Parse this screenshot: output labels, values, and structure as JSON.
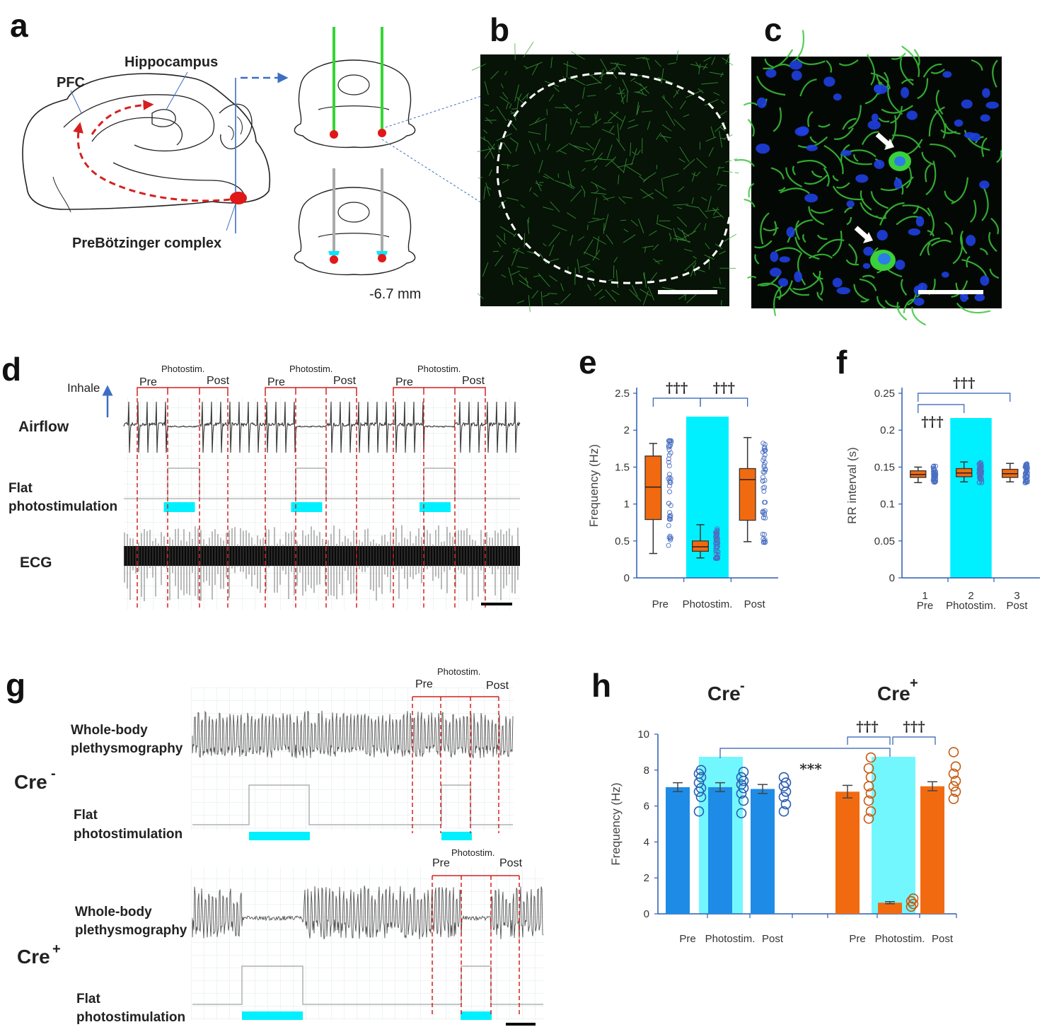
{
  "panel_labels": {
    "a": "a",
    "b": "b",
    "c": "c",
    "d": "d",
    "e": "e",
    "f": "f",
    "g": "g",
    "h": "h"
  },
  "panel_a": {
    "pfc": "PFC",
    "hippocampus": "Hippocampus",
    "prebotzinger": "PreBötzinger complex",
    "depth": "-6.7 mm"
  },
  "panel_d": {
    "inhale": "Inhale",
    "airflow": "Airflow",
    "flat1": "Flat",
    "flat2": "photostimulation",
    "ecg": "ECG",
    "epochs": [
      {
        "pre": "Pre",
        "photo": "Photostim.",
        "post": "Post"
      },
      {
        "pre": "Pre",
        "photo": "Photostim.",
        "post": "Post"
      },
      {
        "pre": "Pre",
        "photo": "Photostim.",
        "post": "Post"
      }
    ]
  },
  "panel_g": {
    "creneg": "Cre",
    "creneg_sup": "-",
    "crepos": "Cre",
    "crepos_sup": "+",
    "wbp1": "Whole-body",
    "wbp2": "plethysmography",
    "flat1": "Flat",
    "flat2": "photostimulation",
    "pre": "Pre",
    "photo": "Photostim.",
    "post": "Post"
  },
  "colors": {
    "orange": "#f26a10",
    "blue": "#1e8ce6",
    "cyan": "#00f0ff",
    "red_dash": "#d42020",
    "axis_blue": "#2b5db0"
  },
  "chart_data": [
    {
      "id": "e",
      "type": "box",
      "ylabel": "Frequency (Hz)",
      "ylim": [
        0,
        2.5
      ],
      "yticks": [
        "0",
        "0.5",
        "1",
        "1.5",
        "2",
        "2.5"
      ],
      "categories": [
        "Pre",
        "Photostim.",
        "Post"
      ],
      "highlight_category": "Photostim.",
      "boxes": [
        {
          "min": 0.33,
          "q1": 0.79,
          "median": 1.23,
          "q3": 1.65,
          "max": 1.82
        },
        {
          "min": 0.27,
          "q1": 0.36,
          "median": 0.42,
          "q3": 0.5,
          "max": 0.72
        },
        {
          "min": 0.49,
          "q1": 0.78,
          "median": 1.33,
          "q3": 1.48,
          "max": 1.9
        }
      ],
      "significance": [
        {
          "from": "Pre",
          "to": "Photostim.",
          "label": "†††"
        },
        {
          "from": "Photostim.",
          "to": "Post",
          "label": "†††"
        }
      ]
    },
    {
      "id": "f",
      "type": "box",
      "ylabel": "RR interval (s)",
      "ylim": [
        0,
        0.25
      ],
      "yticks": [
        "0",
        "0.05",
        "0.1",
        "0.15",
        "0.2",
        "0.25"
      ],
      "categories": [
        "Pre",
        "Photostim.",
        "Post"
      ],
      "category_numbers": [
        "1",
        "2",
        "3"
      ],
      "highlight_category": "Photostim.",
      "boxes": [
        {
          "min": 0.129,
          "q1": 0.136,
          "median": 0.14,
          "q3": 0.145,
          "max": 0.15
        },
        {
          "min": 0.13,
          "q1": 0.137,
          "median": 0.142,
          "q3": 0.148,
          "max": 0.157
        },
        {
          "min": 0.13,
          "q1": 0.136,
          "median": 0.141,
          "q3": 0.147,
          "max": 0.155
        }
      ],
      "significance": [
        {
          "from": "Pre",
          "to": "Photostim.",
          "label": "†††"
        },
        {
          "from": "Pre",
          "to": "Post",
          "label": "†††"
        }
      ]
    },
    {
      "id": "h",
      "type": "bar",
      "ylabel": "Frequency (Hz)",
      "ylim": [
        0,
        10
      ],
      "yticks": [
        "0",
        "2",
        "4",
        "6",
        "8",
        "10"
      ],
      "groups": [
        {
          "name": "Cre",
          "sup": "-",
          "categories": [
            "Pre",
            "Photostim.",
            "Post"
          ],
          "values": [
            7.05,
            7.05,
            6.95
          ],
          "errors": [
            0.25,
            0.25,
            0.25
          ],
          "points": [
            [
              5.7,
              6.5,
              6.8,
              7.0,
              7.3,
              7.6,
              7.8,
              8.0
            ],
            [
              5.6,
              6.3,
              6.7,
              7.0,
              7.2,
              7.4,
              7.6,
              7.9
            ],
            [
              5.7,
              6.1,
              6.5,
              6.8,
              7.1,
              7.3,
              7.6
            ]
          ]
        },
        {
          "name": "Cre",
          "sup": "+",
          "categories": [
            "Pre",
            "Photostim.",
            "Post"
          ],
          "values": [
            6.8,
            0.62,
            7.1
          ],
          "errors": [
            0.35,
            0.06,
            0.25
          ],
          "points": [
            [
              5.3,
              5.7,
              6.3,
              6.7,
              7.1,
              7.6,
              8.1,
              8.7
            ],
            [
              0.4,
              0.55,
              0.7,
              0.85
            ],
            [
              6.4,
              6.8,
              7.1,
              7.4,
              7.8,
              8.2,
              9.0
            ]
          ]
        }
      ],
      "significance": [
        {
          "label": "†††"
        },
        {
          "label": "†††"
        },
        {
          "label": "***"
        }
      ]
    }
  ]
}
